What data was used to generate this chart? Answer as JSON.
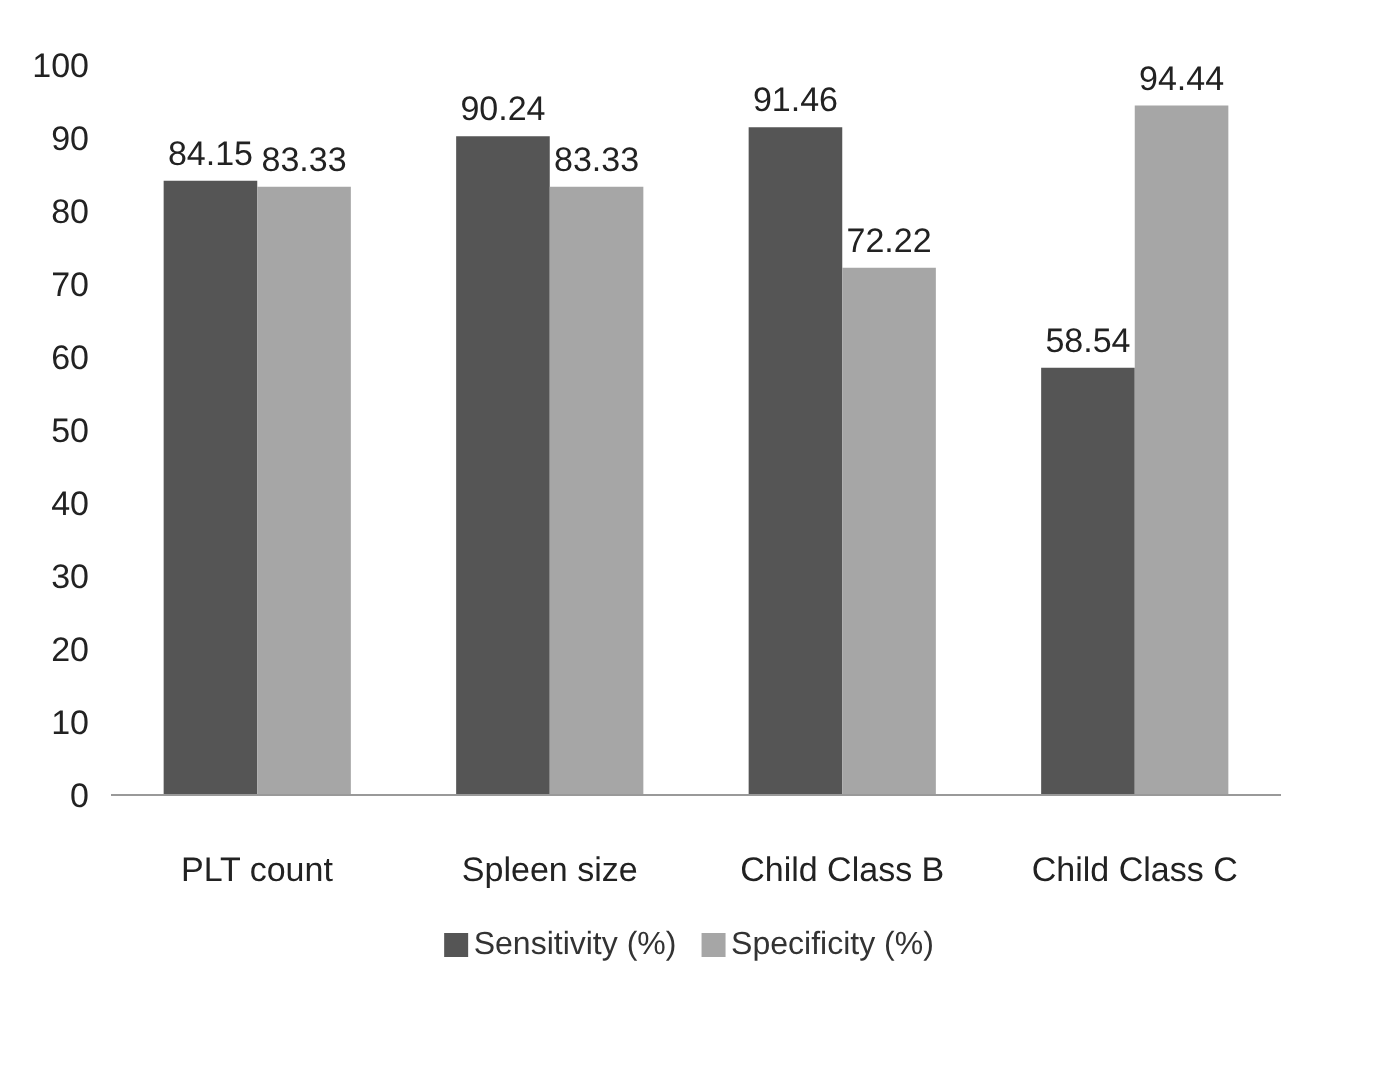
{
  "chart_data": {
    "type": "bar",
    "categories": [
      "PLT count",
      "Spleen size",
      "Child Class B",
      "Child Class C"
    ],
    "series": [
      {
        "name": "Sensitivity (%)",
        "color": "#555555",
        "values": [
          84.15,
          90.24,
          91.46,
          58.54
        ]
      },
      {
        "name": "Specificity (%)",
        "color": "#a6a6a6",
        "values": [
          83.33,
          83.33,
          72.22,
          94.44
        ]
      }
    ],
    "ylim": [
      0,
      100
    ],
    "yticks": [
      0,
      10,
      20,
      30,
      40,
      50,
      60,
      70,
      80,
      90,
      100
    ],
    "grid": false,
    "legend": "bottom",
    "data_labels": true
  }
}
